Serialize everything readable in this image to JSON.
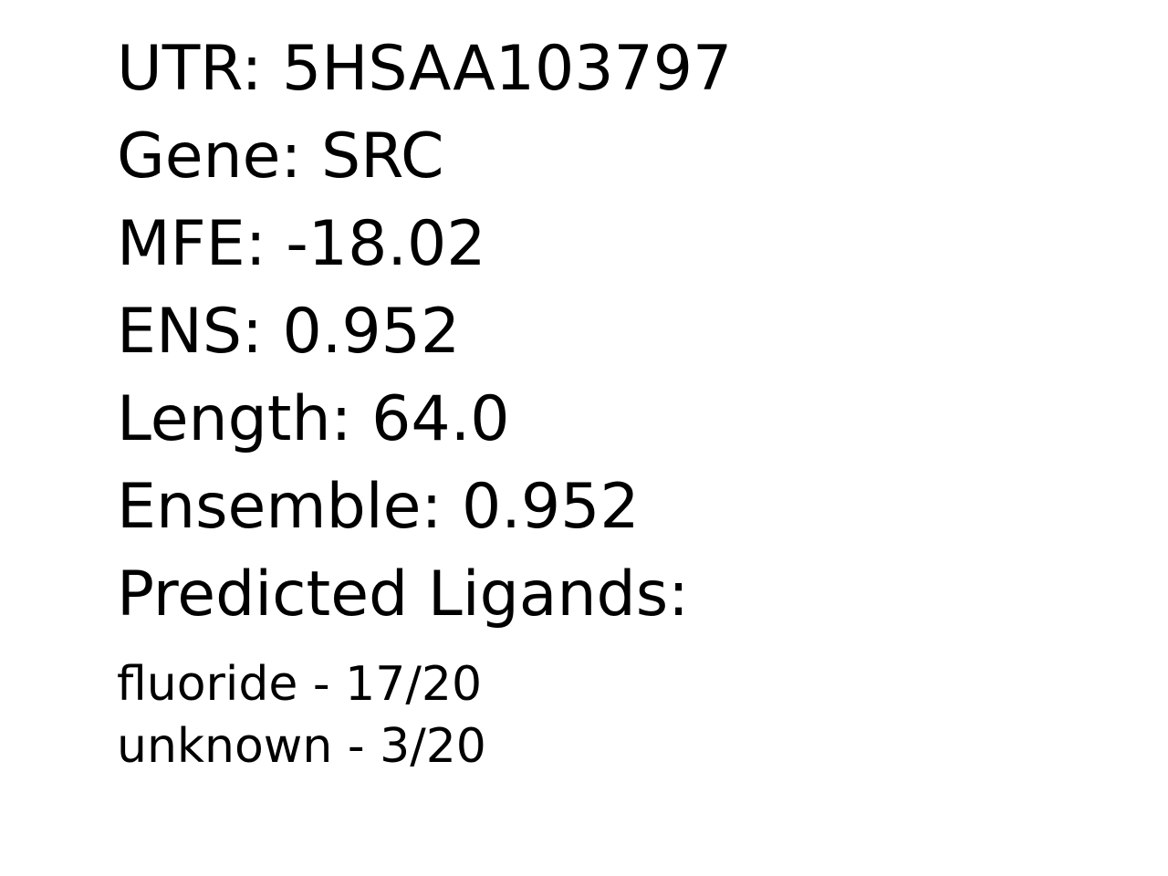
{
  "fields": {
    "utr": "UTR: 5HSAA103797",
    "gene": "Gene: SRC",
    "mfe": "MFE: -18.02",
    "ens": "ENS: 0.952",
    "length": "Length: 64.0",
    "ensemble": "Ensemble: 0.952",
    "predicted_ligands_heading": "Predicted Ligands:"
  },
  "ligands": [
    "fluoride - 17/20",
    "unknown - 3/20"
  ]
}
